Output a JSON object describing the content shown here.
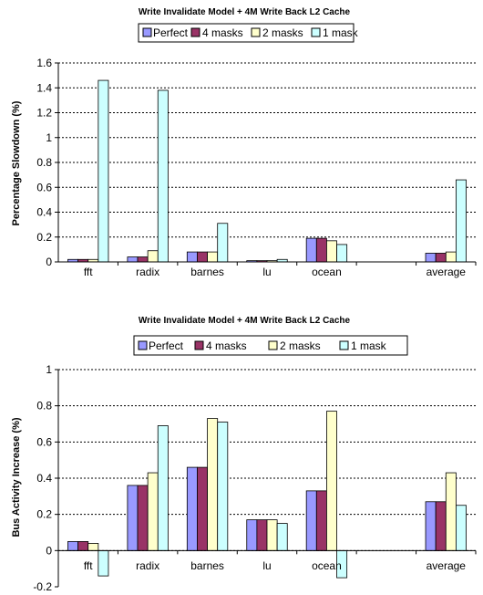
{
  "colors": {
    "series": [
      "#9999FF",
      "#993366",
      "#FFFFCC",
      "#CCFFFF"
    ],
    "stroke": "#000000",
    "grid": "#000000"
  },
  "chart_data": [
    {
      "type": "bar",
      "title": "Write Invalidate Model + 4M Write Back L2 Cache",
      "xlabel": "",
      "ylabel": "Percentage Slowdown (%)",
      "ylim": [
        0,
        1.6
      ],
      "yticks": [
        "0",
        "0.2",
        "0.4",
        "0.6",
        "0.8",
        "1",
        "1.2",
        "1.4",
        "1.6"
      ],
      "grid": true,
      "legend_position": "top",
      "categories": [
        "fft",
        "radix",
        "barnes",
        "lu",
        "ocean",
        "",
        "average"
      ],
      "series": [
        {
          "name": "Perfect",
          "values": [
            0.02,
            0.04,
            0.08,
            0.01,
            0.19,
            null,
            0.07
          ]
        },
        {
          "name": "4 masks",
          "values": [
            0.02,
            0.04,
            0.08,
            0.01,
            0.19,
            null,
            0.07
          ]
        },
        {
          "name": "2 masks",
          "values": [
            0.02,
            0.09,
            0.08,
            0.01,
            0.17,
            null,
            0.08
          ]
        },
        {
          "name": "1 mask",
          "values": [
            1.46,
            1.38,
            0.31,
            0.02,
            0.14,
            null,
            0.66
          ]
        }
      ]
    },
    {
      "type": "bar",
      "title": "Write Invalidate Model + 4M Write Back L2 Cache",
      "xlabel": "",
      "ylabel": "Bus Activity Increase (%)",
      "ylim": [
        -0.2,
        1
      ],
      "yticks": [
        "-0.2",
        "0",
        "0.2",
        "0.4",
        "0.6",
        "0.8",
        "1"
      ],
      "grid": true,
      "legend_position": "top",
      "categories": [
        "fft",
        "radix",
        "barnes",
        "lu",
        "ocean",
        "",
        "average"
      ],
      "series": [
        {
          "name": "Perfect",
          "values": [
            0.05,
            0.36,
            0.46,
            0.17,
            0.33,
            null,
            0.27
          ]
        },
        {
          "name": "4 masks",
          "values": [
            0.05,
            0.36,
            0.46,
            0.17,
            0.33,
            null,
            0.27
          ]
        },
        {
          "name": "2 masks",
          "values": [
            0.04,
            0.43,
            0.73,
            0.17,
            0.77,
            null,
            0.43
          ]
        },
        {
          "name": "1 mask",
          "values": [
            -0.14,
            0.69,
            0.71,
            0.15,
            -0.15,
            null,
            0.25
          ]
        }
      ]
    }
  ]
}
